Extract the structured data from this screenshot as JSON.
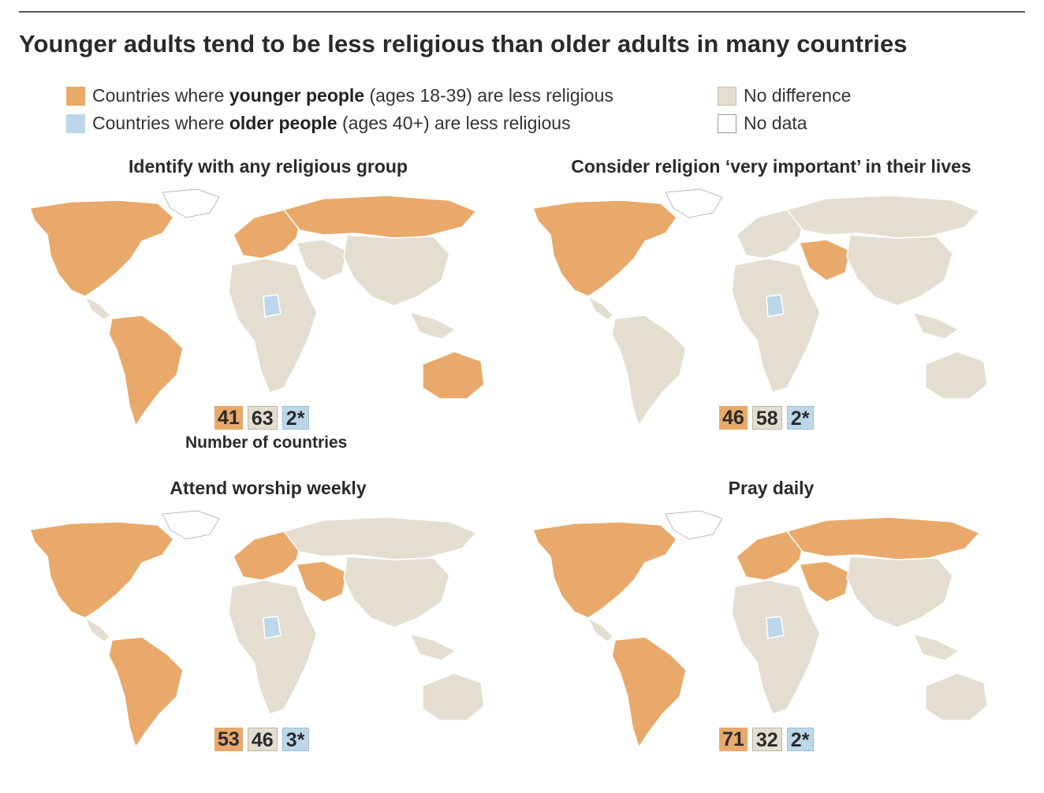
{
  "title": "Younger adults tend to be less religious than older adults in many countries",
  "colors": {
    "younger_less": "#e8a96a",
    "older_less": "#bcd7ea",
    "no_difference": "#e3ded0",
    "no_data": "#ffffff"
  },
  "legend": {
    "young_pre": "Countries where ",
    "young_bold": "younger people",
    "young_post": " (ages 18-39) are less religious",
    "old_pre": "Countries where ",
    "old_bold": "older people",
    "old_post": " (ages 40+) are less religious",
    "nodiff": "No difference",
    "nodata": "No data"
  },
  "maps": [
    {
      "title": "Identify with any religious group",
      "younger": "41",
      "nodiff": "63",
      "older": "2*"
    },
    {
      "title": "Consider religion ‘very important’ in their lives",
      "younger": "46",
      "nodiff": "58",
      "older": "2*"
    },
    {
      "title": "Attend worship weekly",
      "younger": "53",
      "nodiff": "46",
      "older": "3*"
    },
    {
      "title": "Pray daily",
      "younger": "71",
      "nodiff": "32",
      "older": "2*"
    }
  ],
  "count_note": "Number of countries",
  "region_colors": [
    {
      "na": "#e8a96a",
      "sa": "#e8a96a",
      "eu": "#e8a96a",
      "ru": "#e8a96a",
      "af": "#e3ded0",
      "me": "#e3ded0",
      "as": "#e3ded0",
      "au": "#e8a96a",
      "blue": "#bcd7ea"
    },
    {
      "na": "#e8a96a",
      "sa": "#e3ded0",
      "eu": "#e3ded0",
      "ru": "#e3ded0",
      "af": "#e3ded0",
      "me": "#e8a96a",
      "as": "#e3ded0",
      "au": "#e3ded0",
      "blue": "#bcd7ea"
    },
    {
      "na": "#e8a96a",
      "sa": "#e8a96a",
      "eu": "#e8a96a",
      "ru": "#e3ded0",
      "af": "#e3ded0",
      "me": "#e8a96a",
      "as": "#e3ded0",
      "au": "#e3ded0",
      "blue": "#bcd7ea"
    },
    {
      "na": "#e8a96a",
      "sa": "#e8a96a",
      "eu": "#e8a96a",
      "ru": "#e8a96a",
      "af": "#e3ded0",
      "me": "#e8a96a",
      "as": "#e3ded0",
      "au": "#e3ded0",
      "blue": "#bcd7ea"
    }
  ]
}
